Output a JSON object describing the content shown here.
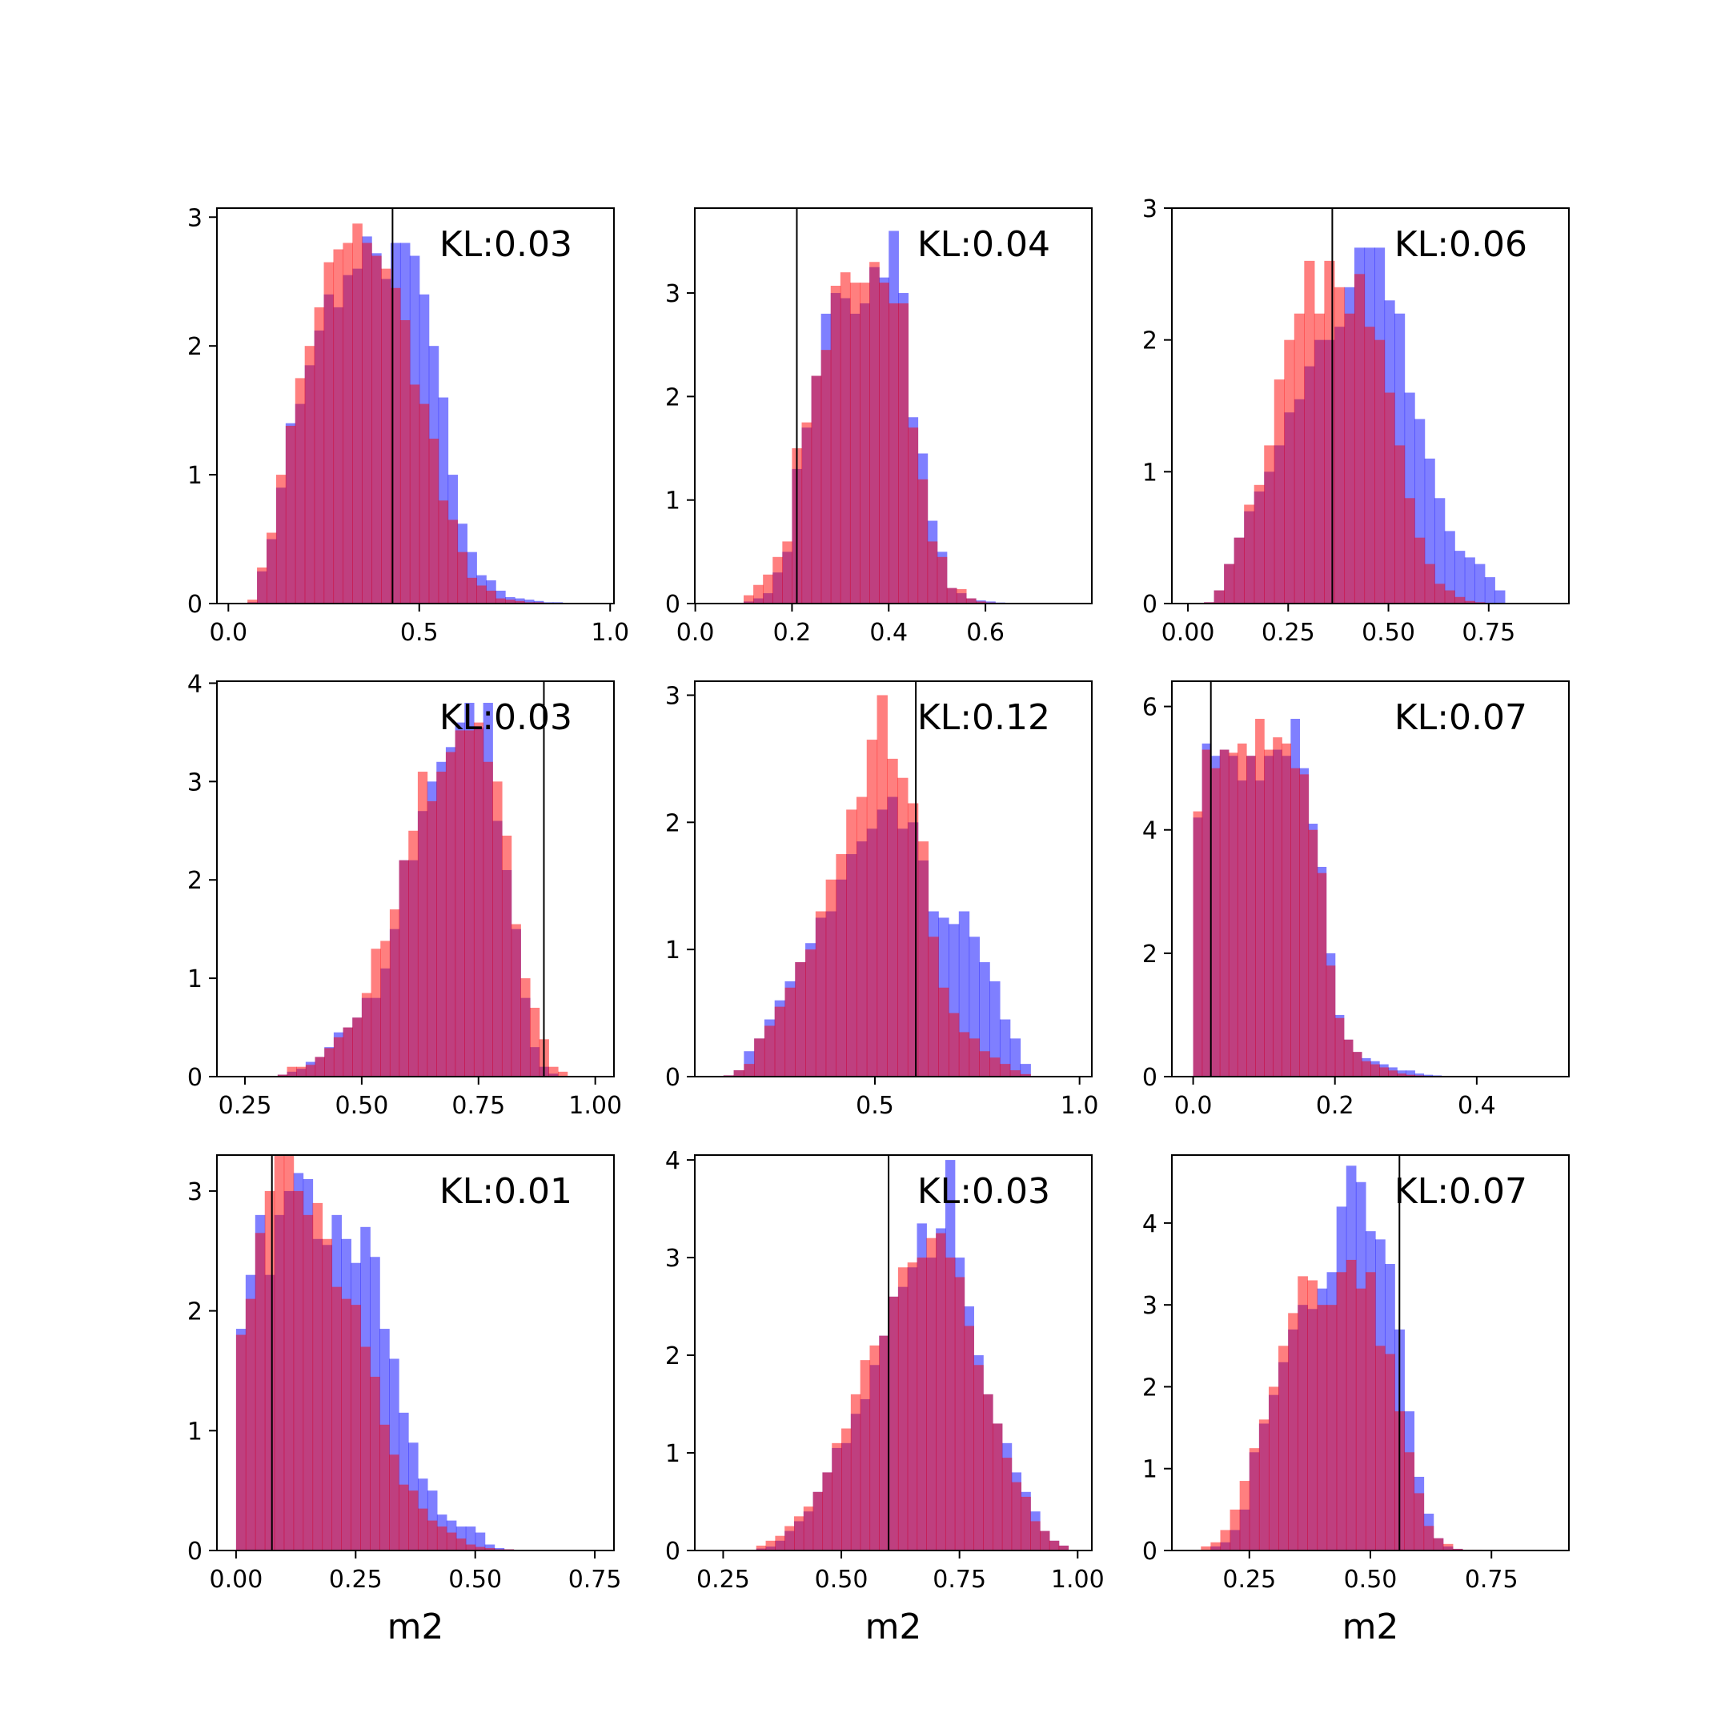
{
  "chart_data": [
    {
      "type": "bar",
      "annotation": "KL:0.03",
      "xlabel": "",
      "xlim": [
        -0.03,
        1.01
      ],
      "ylim": [
        0,
        3.07
      ],
      "xticks": [
        0.0,
        0.5,
        1.0
      ],
      "xtick_labels": [
        "0.0",
        "0.5",
        "1.0"
      ],
      "yticks": [
        0,
        1,
        2,
        3
      ],
      "ytick_labels": [
        "0",
        "1",
        "2",
        "3"
      ],
      "vline": 0.43,
      "bin_start": 0.05,
      "bin_width": 0.025,
      "series": [
        {
          "color": "#0000ff",
          "values": [
            0.01,
            0.25,
            0.5,
            0.9,
            1.4,
            1.55,
            1.85,
            2.12,
            2.4,
            2.3,
            2.55,
            2.6,
            2.85,
            2.72,
            2.52,
            2.8,
            2.8,
            2.7,
            2.4,
            2.0,
            1.6,
            1.0,
            0.62,
            0.4,
            0.22,
            0.18,
            0.1,
            0.05,
            0.04,
            0.03,
            0.02,
            0.01,
            0.01
          ]
        },
        {
          "color": "#ff0000",
          "values": [
            0.03,
            0.28,
            0.55,
            1.0,
            1.38,
            1.75,
            2.0,
            2.3,
            2.65,
            2.75,
            2.8,
            2.95,
            2.8,
            2.7,
            2.6,
            2.45,
            2.2,
            1.7,
            1.55,
            1.28,
            0.8,
            0.65,
            0.4,
            0.2,
            0.14,
            0.1,
            0.04,
            0.03,
            0.02,
            0.01,
            0.01,
            0.0,
            0.0
          ]
        }
      ]
    },
    {
      "type": "bar",
      "annotation": "KL:0.04",
      "xlabel": "",
      "xlim": [
        -0.001,
        0.82
      ],
      "ylim": [
        0,
        3.82
      ],
      "xticks": [
        0.0,
        0.2,
        0.4,
        0.6
      ],
      "xtick_labels": [
        "0.0",
        "0.2",
        "0.4",
        "0.6"
      ],
      "yticks": [
        0,
        1,
        2,
        3
      ],
      "ytick_labels": [
        "0",
        "1",
        "2",
        "3"
      ],
      "vline": 0.21,
      "bin_start": 0.1,
      "bin_width": 0.02,
      "series": [
        {
          "color": "#0000ff",
          "values": [
            0.02,
            0.05,
            0.1,
            0.3,
            0.5,
            1.3,
            1.7,
            2.2,
            2.8,
            3.0,
            2.95,
            2.8,
            2.9,
            3.25,
            3.15,
            3.6,
            3.0,
            1.8,
            1.45,
            0.8,
            0.5,
            0.15,
            0.1,
            0.05,
            0.03,
            0.02,
            0.01,
            0.0,
            0.0
          ]
        },
        {
          "color": "#ff0000",
          "values": [
            0.08,
            0.18,
            0.28,
            0.45,
            0.6,
            1.5,
            1.75,
            2.2,
            2.45,
            3.07,
            3.2,
            3.1,
            3.1,
            3.3,
            3.1,
            2.9,
            2.9,
            1.7,
            1.2,
            0.6,
            0.45,
            0.15,
            0.14,
            0.05,
            0.02,
            0.01,
            0.0,
            0.0,
            0.0
          ]
        }
      ]
    },
    {
      "type": "bar",
      "annotation": "KL:0.06",
      "xlabel": "",
      "xlim": [
        -0.04,
        0.95
      ],
      "ylim": [
        0,
        3.0
      ],
      "xticks": [
        0.0,
        0.25,
        0.5,
        0.75
      ],
      "xtick_labels": [
        "0.00",
        "0.25",
        "0.50",
        "0.75"
      ],
      "yticks": [
        0,
        1,
        2,
        3
      ],
      "ytick_labels": [
        "0",
        "1",
        "2",
        "3"
      ],
      "vline": 0.36,
      "bin_start": 0.04,
      "bin_width": 0.025,
      "series": [
        {
          "color": "#0000ff",
          "values": [
            0.01,
            0.1,
            0.3,
            0.5,
            0.7,
            0.85,
            1.0,
            1.2,
            1.45,
            1.55,
            1.8,
            2.0,
            2.0,
            2.1,
            2.4,
            2.7,
            2.7,
            2.7,
            2.3,
            2.2,
            1.6,
            1.4,
            1.1,
            0.8,
            0.55,
            0.4,
            0.35,
            0.3,
            0.2,
            0.1
          ]
        },
        {
          "color": "#ff0000",
          "values": [
            0.01,
            0.1,
            0.3,
            0.5,
            0.75,
            0.9,
            1.2,
            1.7,
            2.0,
            2.2,
            2.6,
            2.2,
            2.6,
            2.4,
            2.2,
            2.5,
            2.1,
            2.0,
            1.6,
            1.2,
            0.8,
            0.5,
            0.3,
            0.15,
            0.1,
            0.05,
            0.02,
            0.01,
            0.0,
            0.0
          ]
        }
      ]
    },
    {
      "type": "bar",
      "annotation": "KL:0.03",
      "xlabel": "",
      "xlim": [
        0.19,
        1.04
      ],
      "ylim": [
        0,
        4.02
      ],
      "xticks": [
        0.25,
        0.5,
        0.75,
        1.0
      ],
      "xtick_labels": [
        "0.25",
        "0.50",
        "0.75",
        "1.00"
      ],
      "yticks": [
        0,
        1,
        2,
        3,
        4
      ],
      "ytick_labels": [
        "0",
        "1",
        "2",
        "3",
        "4"
      ],
      "vline": 0.89,
      "bin_start": 0.3,
      "bin_width": 0.02,
      "series": [
        {
          "color": "#0000ff",
          "values": [
            0.0,
            0.02,
            0.05,
            0.08,
            0.15,
            0.2,
            0.3,
            0.45,
            0.5,
            0.6,
            0.8,
            0.8,
            1.1,
            1.5,
            2.2,
            2.2,
            2.7,
            3.0,
            3.2,
            3.35,
            3.6,
            3.8,
            3.55,
            3.8,
            2.6,
            2.1,
            1.5,
            0.8,
            0.3,
            0.1,
            0.03,
            0.0,
            0.0,
            0.0,
            0.0
          ]
        },
        {
          "color": "#ff0000",
          "values": [
            0.0,
            0.02,
            0.1,
            0.1,
            0.12,
            0.2,
            0.29,
            0.4,
            0.5,
            0.6,
            0.85,
            1.3,
            1.38,
            1.7,
            2.2,
            2.5,
            3.1,
            2.8,
            3.1,
            3.3,
            3.52,
            3.52,
            3.6,
            3.2,
            3.0,
            2.45,
            1.55,
            1.0,
            0.7,
            0.38,
            0.1,
            0.05,
            0.0,
            0.0,
            0.0
          ]
        }
      ]
    },
    {
      "type": "bar",
      "annotation": "KL:0.12",
      "xlabel": "",
      "xlim": [
        0.06,
        1.03
      ],
      "ylim": [
        0,
        3.11
      ],
      "xticks": [
        0.5,
        1.0
      ],
      "xtick_labels": [
        "0.5",
        "1.0"
      ],
      "yticks": [
        0,
        1,
        2,
        3
      ],
      "ytick_labels": [
        "0",
        "1",
        "2",
        "3"
      ],
      "vline": 0.6,
      "bin_start": 0.13,
      "bin_width": 0.025,
      "series": [
        {
          "color": "#0000ff",
          "values": [
            0.01,
            0.05,
            0.2,
            0.3,
            0.45,
            0.6,
            0.75,
            0.9,
            1.05,
            1.25,
            1.3,
            1.55,
            1.75,
            1.85,
            1.95,
            2.1,
            2.2,
            1.95,
            2.0,
            1.7,
            1.3,
            1.25,
            1.2,
            1.3,
            1.1,
            0.9,
            0.75,
            0.45,
            0.3,
            0.1
          ]
        },
        {
          "color": "#ff0000",
          "values": [
            0.01,
            0.05,
            0.1,
            0.3,
            0.4,
            0.55,
            0.7,
            0.9,
            1.0,
            1.3,
            1.55,
            1.75,
            2.1,
            2.2,
            2.65,
            3.0,
            2.5,
            2.35,
            2.15,
            1.85,
            1.1,
            0.7,
            0.5,
            0.35,
            0.3,
            0.2,
            0.15,
            0.1,
            0.05,
            0.02
          ]
        }
      ]
    },
    {
      "type": "bar",
      "annotation": "KL:0.07",
      "xlabel": "",
      "xlim": [
        -0.03,
        0.53
      ],
      "ylim": [
        0,
        6.41
      ],
      "xticks": [
        0.0,
        0.2,
        0.4
      ],
      "xtick_labels": [
        "0.0",
        "0.2",
        "0.4"
      ],
      "yticks": [
        0,
        2,
        4,
        6
      ],
      "ytick_labels": [
        "0",
        "2",
        "4",
        "6"
      ],
      "vline": 0.025,
      "bin_start": 0.0,
      "bin_width": 0.0125,
      "series": [
        {
          "color": "#0000ff",
          "values": [
            4.2,
            5.4,
            5.2,
            5.3,
            5.2,
            4.8,
            5.2,
            4.8,
            5.2,
            5.3,
            5.2,
            5.8,
            5.0,
            4.1,
            3.4,
            2.0,
            1.0,
            0.6,
            0.4,
            0.3,
            0.25,
            0.2,
            0.15,
            0.1,
            0.1,
            0.05,
            0.03,
            0.02,
            0.01,
            0.0
          ]
        },
        {
          "color": "#ff0000",
          "values": [
            4.3,
            5.3,
            5.0,
            5.3,
            5.25,
            5.4,
            5.2,
            5.8,
            5.3,
            5.5,
            5.4,
            5.0,
            4.9,
            4.0,
            3.3,
            1.8,
            0.95,
            0.6,
            0.4,
            0.25,
            0.2,
            0.15,
            0.1,
            0.05,
            0.03,
            0.02,
            0.01,
            0.0,
            0.0,
            0.0
          ]
        }
      ]
    },
    {
      "type": "bar",
      "annotation": "KL:0.01",
      "xlabel": "m2",
      "xlim": [
        -0.04,
        0.79
      ],
      "ylim": [
        0,
        3.3
      ],
      "xticks": [
        0.0,
        0.25,
        0.5,
        0.75
      ],
      "xtick_labels": [
        "0.00",
        "0.25",
        "0.50",
        "0.75"
      ],
      "yticks": [
        0,
        1,
        2,
        3
      ],
      "ytick_labels": [
        "0",
        "1",
        "2",
        "3"
      ],
      "vline": 0.075,
      "bin_start": 0.0,
      "bin_width": 0.02,
      "series": [
        {
          "color": "#0000ff",
          "values": [
            1.85,
            2.3,
            2.8,
            2.3,
            2.8,
            3.0,
            3.15,
            3.1,
            2.6,
            2.55,
            2.8,
            2.6,
            2.4,
            2.7,
            2.45,
            1.85,
            1.6,
            1.15,
            0.9,
            0.6,
            0.5,
            0.3,
            0.25,
            0.2,
            0.2,
            0.15,
            0.05,
            0.02,
            0.01,
            0.0,
            0.0
          ]
        },
        {
          "color": "#ff0000",
          "values": [
            1.8,
            2.1,
            2.65,
            3.0,
            3.3,
            3.3,
            3.0,
            2.8,
            2.9,
            2.6,
            2.2,
            2.1,
            2.05,
            1.7,
            1.45,
            1.05,
            0.8,
            0.55,
            0.5,
            0.35,
            0.25,
            0.2,
            0.15,
            0.1,
            0.05,
            0.03,
            0.02,
            0.01,
            0.01,
            0.0,
            0.0
          ]
        }
      ]
    },
    {
      "type": "bar",
      "annotation": "KL:0.03",
      "xlabel": "m2",
      "xlim": [
        0.19,
        1.03
      ],
      "ylim": [
        0,
        4.05
      ],
      "xticks": [
        0.25,
        0.5,
        0.75,
        1.0
      ],
      "xtick_labels": [
        "0.25",
        "0.50",
        "0.75",
        "1.00"
      ],
      "yticks": [
        0,
        1,
        2,
        3,
        4
      ],
      "ytick_labels": [
        "0",
        "1",
        "2",
        "3",
        "4"
      ],
      "vline": 0.6,
      "bin_start": 0.3,
      "bin_width": 0.02,
      "series": [
        {
          "color": "#0000ff",
          "values": [
            0.0,
            0.02,
            0.04,
            0.1,
            0.2,
            0.3,
            0.4,
            0.6,
            0.8,
            1.05,
            1.1,
            1.4,
            1.55,
            1.9,
            2.2,
            2.6,
            2.7,
            2.9,
            3.35,
            3.0,
            3.3,
            4.0,
            3.0,
            2.5,
            2.0,
            1.6,
            1.3,
            1.1,
            0.8,
            0.6,
            0.4,
            0.2,
            0.1,
            0.05,
            0.0
          ]
        },
        {
          "color": "#ff0000",
          "values": [
            0.0,
            0.05,
            0.1,
            0.15,
            0.25,
            0.35,
            0.45,
            0.6,
            0.8,
            1.1,
            1.25,
            1.6,
            1.95,
            2.1,
            2.2,
            2.6,
            2.9,
            2.95,
            3.0,
            3.2,
            3.25,
            3.0,
            2.8,
            2.3,
            1.9,
            1.6,
            1.3,
            0.95,
            0.7,
            0.55,
            0.3,
            0.2,
            0.1,
            0.05,
            0.0
          ]
        }
      ]
    },
    {
      "type": "bar",
      "annotation": "KL:0.07",
      "xlabel": "m2",
      "xlim": [
        0.09,
        0.91
      ],
      "ylim": [
        0,
        4.83
      ],
      "xticks": [
        0.25,
        0.5,
        0.75
      ],
      "xtick_labels": [
        "0.25",
        "0.50",
        "0.75"
      ],
      "yticks": [
        0,
        1,
        2,
        3,
        4
      ],
      "ytick_labels": [
        "0",
        "1",
        "2",
        "3",
        "4"
      ],
      "vline": 0.56,
      "bin_start": 0.15,
      "bin_width": 0.02,
      "series": [
        {
          "color": "#0000ff",
          "values": [
            0.0,
            0.05,
            0.1,
            0.25,
            0.5,
            1.2,
            1.55,
            1.9,
            2.3,
            2.7,
            3.0,
            2.95,
            3.2,
            3.4,
            4.2,
            4.7,
            4.5,
            3.9,
            3.8,
            3.5,
            2.7,
            1.7,
            0.9,
            0.45,
            0.15,
            0.05,
            0.02,
            0.0,
            0.0,
            0.0
          ]
        },
        {
          "color": "#ff0000",
          "values": [
            0.05,
            0.1,
            0.25,
            0.5,
            0.85,
            1.25,
            1.6,
            2.0,
            2.5,
            2.9,
            3.35,
            3.3,
            3.0,
            3.0,
            3.4,
            3.55,
            3.2,
            3.4,
            2.5,
            2.4,
            1.7,
            1.2,
            0.7,
            0.3,
            0.15,
            0.08,
            0.02,
            0.01,
            0.01,
            0.0
          ]
        }
      ]
    }
  ]
}
